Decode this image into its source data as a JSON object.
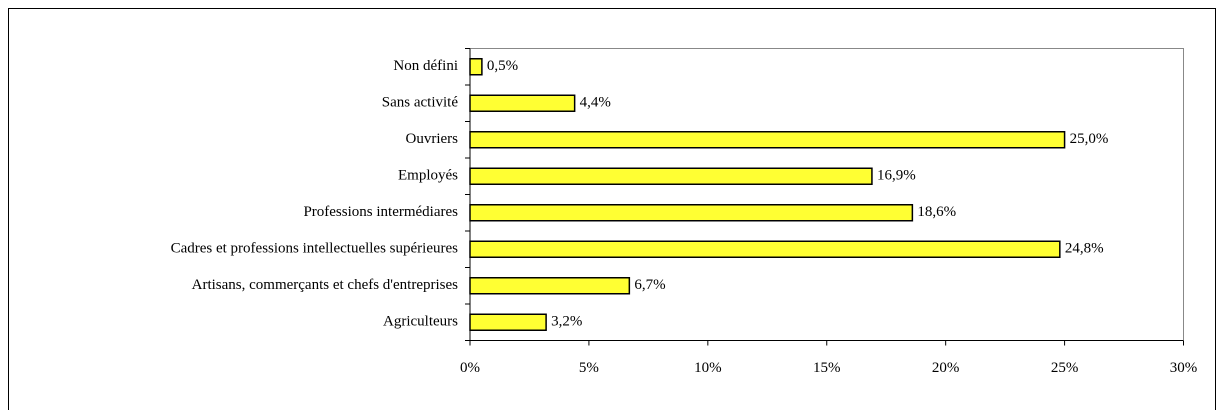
{
  "chart_data": {
    "type": "bar",
    "orientation": "horizontal",
    "categories": [
      "Non défini",
      "Sans activité",
      "Ouvriers",
      "Employés",
      "Professions intermédiares",
      "Cadres et professions intellectuelles supérieures",
      "Artisans, commerçants et chefs d'entreprises",
      "Agriculteurs"
    ],
    "values": [
      0.5,
      4.4,
      25.0,
      16.9,
      18.6,
      24.8,
      6.7,
      3.2
    ],
    "value_labels": [
      "0,5%",
      "4,4%",
      "25,0%",
      "16,9%",
      "18,6%",
      "24,8%",
      "6,7%",
      "3,2%"
    ],
    "color": "#ffff33",
    "xlim": [
      0,
      30
    ],
    "xticks": [
      {
        "value": 0,
        "label": "0%"
      },
      {
        "value": 5,
        "label": "5%"
      },
      {
        "value": 10,
        "label": "10%"
      },
      {
        "value": 15,
        "label": "15%"
      },
      {
        "value": 20,
        "label": "20%"
      },
      {
        "value": 25,
        "label": "25%"
      },
      {
        "value": 30,
        "label": "30%"
      }
    ]
  }
}
